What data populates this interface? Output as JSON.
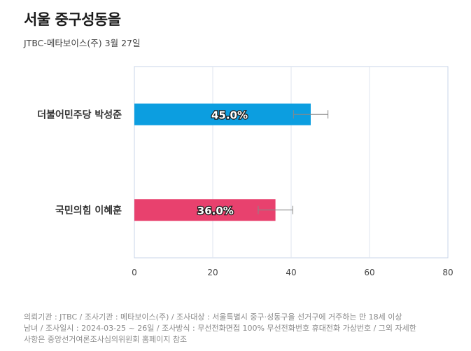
{
  "header": {
    "title": "서울 중구성동을",
    "subtitle": "JTBC-메타보이스(주) 3월 27일"
  },
  "chart_data": {
    "type": "bar",
    "orientation": "horizontal",
    "title": "서울 중구성동을",
    "subtitle": "JTBC-메타보이스(주) 3월 27일",
    "categories": [
      "더불어민주당 박성준",
      "국민의힘 이혜훈"
    ],
    "values": [
      45.0,
      36.0
    ],
    "value_labels": [
      "45.0%",
      "36.0%"
    ],
    "error_margin": 4.4,
    "colors": [
      "#0c9ee0",
      "#e8416e"
    ],
    "xlim": [
      0,
      80
    ],
    "xticks": [
      0,
      20,
      40,
      60,
      80
    ],
    "grid": true,
    "legend": "none"
  },
  "footnote": {
    "lines": [
      "의뢰기관 : JTBC / 조사기관 : 메타보이스(주) / 조사대상 : 서울특별시 중구·성동구을 선거구에 거주하는 만 18세 이상",
      "남녀 / 조사일시 : 2024-03-25 ~ 26일 / 조사방식 : 무선전화면접 100% 무선전화번호 휴대전화 가상번호 / 그외 자세한",
      "사항은 중앙선거여론조사심의위원회 홈페이지 참조"
    ]
  }
}
